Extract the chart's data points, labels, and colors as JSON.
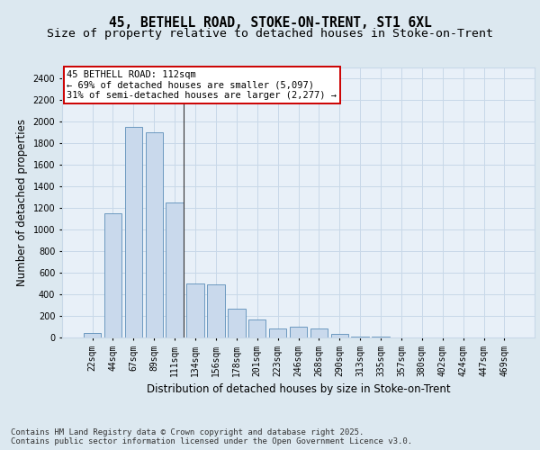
{
  "title_line1": "45, BETHELL ROAD, STOKE-ON-TRENT, ST1 6XL",
  "title_line2": "Size of property relative to detached houses in Stoke-on-Trent",
  "xlabel": "Distribution of detached houses by size in Stoke-on-Trent",
  "ylabel": "Number of detached properties",
  "categories": [
    "22sqm",
    "44sqm",
    "67sqm",
    "89sqm",
    "111sqm",
    "134sqm",
    "156sqm",
    "178sqm",
    "201sqm",
    "223sqm",
    "246sqm",
    "268sqm",
    "290sqm",
    "313sqm",
    "335sqm",
    "357sqm",
    "380sqm",
    "402sqm",
    "424sqm",
    "447sqm",
    "469sqm"
  ],
  "values": [
    40,
    1150,
    1950,
    1900,
    1250,
    500,
    490,
    270,
    170,
    80,
    100,
    80,
    30,
    10,
    5,
    3,
    2,
    1,
    1,
    0,
    0
  ],
  "bar_color": "#c9d9ec",
  "bar_edgecolor": "#5b8db8",
  "vline_color": "#333333",
  "annotation_text": "45 BETHELL ROAD: 112sqm\n← 69% of detached houses are smaller (5,097)\n31% of semi-detached houses are larger (2,277) →",
  "annotation_box_color": "#ffffff",
  "annotation_box_edgecolor": "#cc0000",
  "ylim": [
    0,
    2500
  ],
  "yticks": [
    0,
    200,
    400,
    600,
    800,
    1000,
    1200,
    1400,
    1600,
    1800,
    2000,
    2200,
    2400
  ],
  "grid_color": "#c8d8e8",
  "background_color": "#dce8f0",
  "plot_bg_color": "#e8f0f8",
  "footer_text": "Contains HM Land Registry data © Crown copyright and database right 2025.\nContains public sector information licensed under the Open Government Licence v3.0.",
  "title_fontsize": 10.5,
  "subtitle_fontsize": 9.5,
  "axis_label_fontsize": 8.5,
  "tick_fontsize": 7,
  "annotation_fontsize": 7.5,
  "footer_fontsize": 6.5
}
